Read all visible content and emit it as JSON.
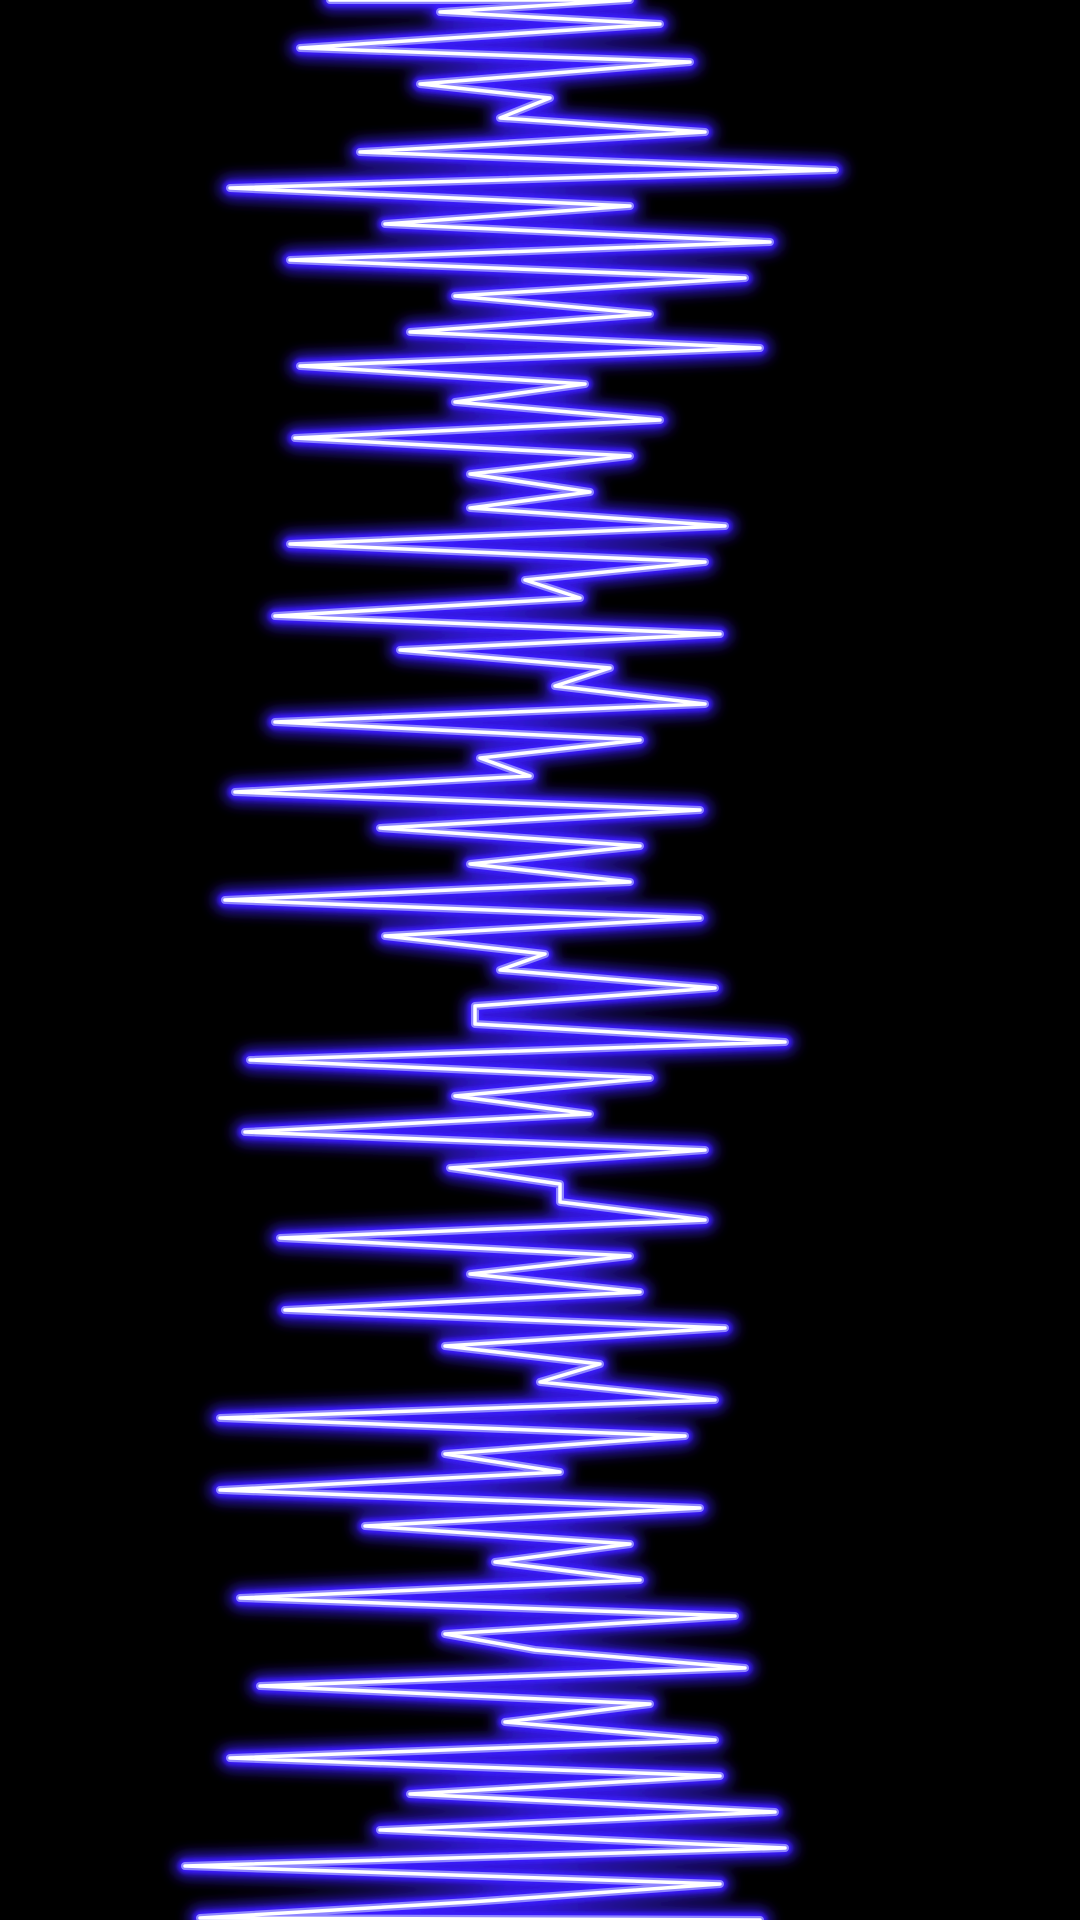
{
  "visual": {
    "background_color": "#000000",
    "glow_color": "#3a1cff",
    "mid_color": "#8f86ff",
    "core_color": "#ffffff",
    "icon": "neon-waveform-icon"
  },
  "waveform": {
    "orientation": "vertical",
    "style": "neon zigzag",
    "sample_count": 110
  }
}
